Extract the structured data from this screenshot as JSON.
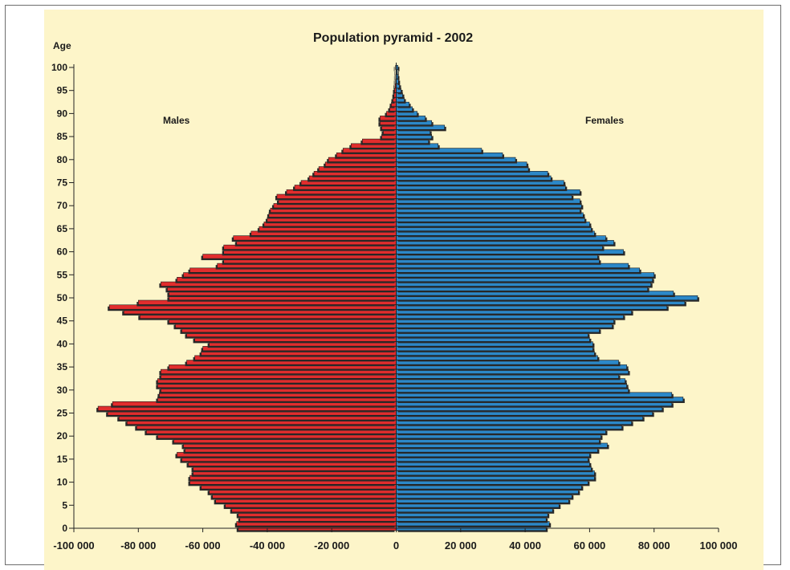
{
  "chart_data": {
    "type": "bar",
    "title": "Population pyramid - 2002",
    "ylabel": "Age",
    "xlim": [
      -100000,
      100000
    ],
    "ylim": [
      0,
      100
    ],
    "x_ticks": [
      "-100 000",
      "-80 000",
      "-60 000",
      "-40 000",
      "-20 000",
      "0",
      "20 000",
      "40 000",
      "60 000",
      "80 000",
      "100 000"
    ],
    "y_ticks": [
      "0",
      "5",
      "10",
      "15",
      "20",
      "25",
      "30",
      "35",
      "40",
      "45",
      "50",
      "55",
      "60",
      "65",
      "70",
      "75",
      "80",
      "85",
      "90",
      "95",
      "100"
    ],
    "grid": false,
    "series": [
      {
        "name": "Males",
        "color": "#e12d2d",
        "values": [
          -49000,
          -49500,
          -48500,
          -49000,
          -51000,
          -53000,
          -56000,
          -57000,
          -58000,
          -60500,
          -64000,
          -64000,
          -63000,
          -63000,
          -64500,
          -66500,
          -68000,
          -65500,
          -66000,
          -69000,
          -74000,
          -77500,
          -80500,
          -83500,
          -86000,
          -89500,
          -92500,
          -88000,
          -74000,
          -73500,
          -73000,
          -74000,
          -74000,
          -73000,
          -73000,
          -70500,
          -65000,
          -62500,
          -60500,
          -60000,
          -58000,
          -62500,
          -65000,
          -66500,
          -68500,
          -70500,
          -79500,
          -84500,
          -89000,
          -80000,
          -70500,
          -70500,
          -71000,
          -73000,
          -68000,
          -66000,
          -64000,
          -55500,
          -53500,
          -60000,
          -53500,
          -53500,
          -49500,
          -50500,
          -45000,
          -42500,
          -41000,
          -40000,
          -39500,
          -39000,
          -38000,
          -36500,
          -37000,
          -34000,
          -31500,
          -29500,
          -27000,
          -25500,
          -24000,
          -22000,
          -21000,
          -18500,
          -16500,
          -14000,
          -10500,
          -4500,
          -4000,
          -4500,
          -5000,
          -5000,
          -3000,
          -2000,
          -1500,
          -1000,
          -700,
          -500,
          -300,
          -200,
          -150,
          -100,
          -200
        ]
      },
      {
        "name": "Females",
        "color": "#2c88c8",
        "values": [
          46500,
          47500,
          46500,
          47000,
          48500,
          50500,
          53500,
          54500,
          56500,
          57500,
          59500,
          61500,
          61500,
          60500,
          60000,
          59500,
          60000,
          62500,
          65500,
          63000,
          63500,
          65000,
          70000,
          73000,
          76500,
          79500,
          82500,
          85500,
          89000,
          85500,
          72000,
          71500,
          71000,
          69000,
          72000,
          71500,
          69000,
          62500,
          61500,
          61000,
          61000,
          60000,
          59500,
          63000,
          67000,
          67500,
          70500,
          73000,
          84000,
          89500,
          93500,
          86000,
          78000,
          79000,
          79500,
          80000,
          75500,
          72000,
          63000,
          62500,
          70500,
          64000,
          67500,
          65000,
          61500,
          60500,
          60000,
          58500,
          58000,
          57000,
          57500,
          57000,
          54500,
          57000,
          52500,
          52000,
          48000,
          47000,
          41000,
          40500,
          37000,
          33000,
          26500,
          13000,
          10000,
          11000,
          10500,
          15000,
          11000,
          9000,
          6500,
          5000,
          4000,
          2500,
          2000,
          1500,
          1000,
          700,
          500,
          300,
          500
        ]
      }
    ],
    "series_labels": {
      "males": "Males",
      "females": "Females"
    }
  }
}
